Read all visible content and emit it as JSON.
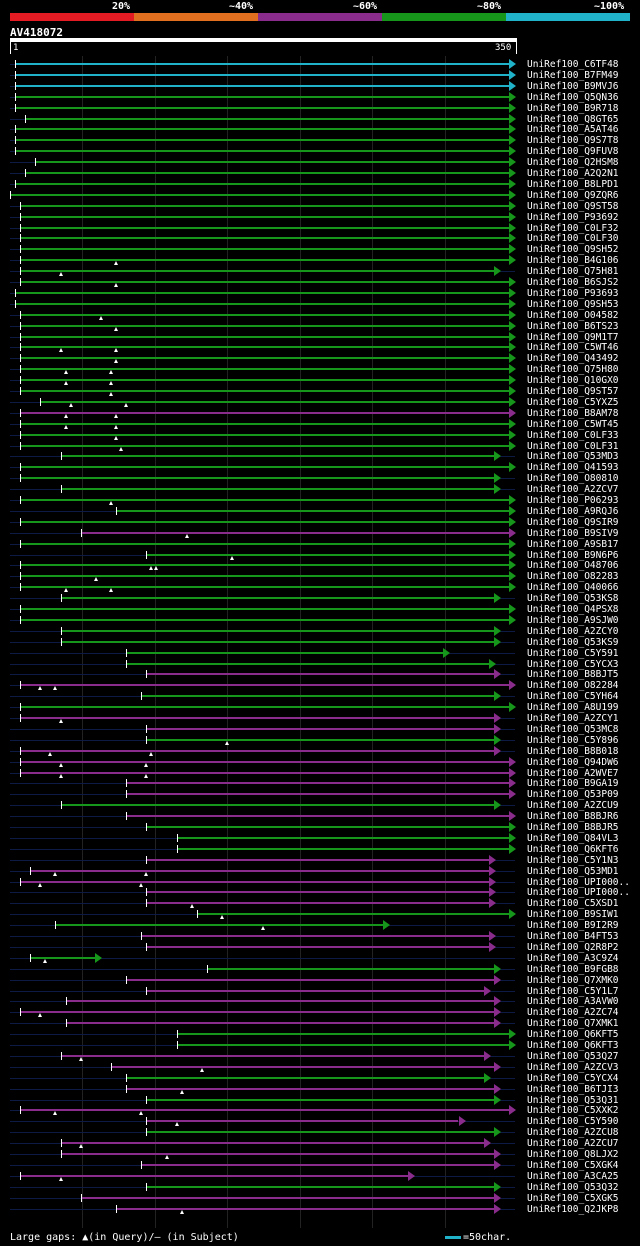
{
  "legend": {
    "labels": [
      "20%",
      "~40%",
      "~60%",
      "~80%",
      "~100%"
    ],
    "colors": [
      "#e51b24",
      "#e07020",
      "#8a2c8c",
      "#16961a",
      "#20b2c8"
    ]
  },
  "query": {
    "id": "AV418072",
    "start": "1",
    "end": "350"
  },
  "footer": {
    "text": "Large gaps: ▲(in Query)/– (in Subject)",
    "scale_text": "=50char."
  },
  "hits": [
    {
      "name": "UniRef100_C6TF48",
      "color": "#20b2c8",
      "s": 0.01,
      "e": 1.0,
      "gap": []
    },
    {
      "name": "UniRef100_B7FM49",
      "color": "#20b2c8",
      "s": 0.01,
      "e": 1.0,
      "gap": []
    },
    {
      "name": "UniRef100_B9MVJ6",
      "color": "#20b2c8",
      "s": 0.01,
      "e": 1.0,
      "gap": []
    },
    {
      "name": "UniRef100_Q5QN36",
      "color": "#16961a",
      "s": 0.01,
      "e": 1.0,
      "gap": []
    },
    {
      "name": "UniRef100_B9R718",
      "color": "#16961a",
      "s": 0.01,
      "e": 1.0,
      "gap": []
    },
    {
      "name": "UniRef100_Q8GT65",
      "color": "#16961a",
      "s": 0.03,
      "e": 1.0,
      "gap": []
    },
    {
      "name": "UniRef100_A5AT46",
      "color": "#16961a",
      "s": 0.01,
      "e": 1.0,
      "gap": []
    },
    {
      "name": "UniRef100_Q9S7T8",
      "color": "#16961a",
      "s": 0.01,
      "e": 1.0,
      "gap": []
    },
    {
      "name": "UniRef100_Q9FUV8",
      "color": "#16961a",
      "s": 0.01,
      "e": 1.0,
      "gap": []
    },
    {
      "name": "UniRef100_Q2HSM8",
      "color": "#16961a",
      "s": 0.05,
      "e": 1.0,
      "gap": []
    },
    {
      "name": "UniRef100_A2Q2N1",
      "color": "#16961a",
      "s": 0.03,
      "e": 1.0,
      "gap": []
    },
    {
      "name": "UniRef100_B8LPD1",
      "color": "#16961a",
      "s": 0.01,
      "e": 1.0,
      "gap": []
    },
    {
      "name": "UniRef100_Q9ZQR6",
      "color": "#16961a",
      "s": 0.0,
      "e": 1.0,
      "gap": []
    },
    {
      "name": "UniRef100_Q9ST58",
      "color": "#16961a",
      "s": 0.02,
      "e": 1.0,
      "gap": []
    },
    {
      "name": "UniRef100_P93692",
      "color": "#16961a",
      "s": 0.02,
      "e": 1.0,
      "gap": []
    },
    {
      "name": "UniRef100_C0LF32",
      "color": "#16961a",
      "s": 0.02,
      "e": 1.0,
      "gap": []
    },
    {
      "name": "UniRef100_C0LF30",
      "color": "#16961a",
      "s": 0.02,
      "e": 1.0,
      "gap": []
    },
    {
      "name": "UniRef100_Q9SH52",
      "color": "#16961a",
      "s": 0.02,
      "e": 1.0,
      "gap": []
    },
    {
      "name": "UniRef100_B4G106",
      "color": "#16961a",
      "s": 0.02,
      "e": 1.0,
      "gap": [
        0.21
      ]
    },
    {
      "name": "UniRef100_Q75H81",
      "color": "#16961a",
      "s": 0.02,
      "e": 0.97,
      "gap": [
        0.1
      ]
    },
    {
      "name": "UniRef100_B6SJS2",
      "color": "#16961a",
      "s": 0.02,
      "e": 1.0,
      "gap": [
        0.21
      ]
    },
    {
      "name": "UniRef100_P93693",
      "color": "#16961a",
      "s": 0.01,
      "e": 1.0,
      "gap": []
    },
    {
      "name": "UniRef100_Q9SH53",
      "color": "#16961a",
      "s": 0.01,
      "e": 1.0,
      "gap": []
    },
    {
      "name": "UniRef100_O04582",
      "color": "#16961a",
      "s": 0.02,
      "e": 1.0,
      "gap": [
        0.18
      ]
    },
    {
      "name": "UniRef100_B6TS23",
      "color": "#16961a",
      "s": 0.02,
      "e": 1.0,
      "gap": [
        0.21
      ]
    },
    {
      "name": "UniRef100_Q9M1T7",
      "color": "#16961a",
      "s": 0.02,
      "e": 1.0,
      "gap": []
    },
    {
      "name": "UniRef100_C5WT46",
      "color": "#16961a",
      "s": 0.02,
      "e": 1.0,
      "gap": [
        0.1,
        0.21
      ]
    },
    {
      "name": "UniRef100_Q43492",
      "color": "#16961a",
      "s": 0.02,
      "e": 1.0,
      "gap": [
        0.21
      ]
    },
    {
      "name": "UniRef100_Q75H80",
      "color": "#16961a",
      "s": 0.02,
      "e": 1.0,
      "gap": [
        0.11,
        0.2
      ]
    },
    {
      "name": "UniRef100_Q10GX0",
      "color": "#16961a",
      "s": 0.02,
      "e": 1.0,
      "gap": [
        0.11,
        0.2
      ]
    },
    {
      "name": "UniRef100_Q9ST57",
      "color": "#16961a",
      "s": 0.02,
      "e": 1.0,
      "gap": [
        0.2
      ]
    },
    {
      "name": "UniRef100_C5YXZ5",
      "color": "#16961a",
      "s": 0.06,
      "e": 1.0,
      "gap": [
        0.12,
        0.23
      ]
    },
    {
      "name": "UniRef100_B8AM78",
      "color": "#8a2c8c",
      "s": 0.02,
      "e": 1.0,
      "gap": [
        0.11,
        0.21
      ]
    },
    {
      "name": "UniRef100_C5WT45",
      "color": "#16961a",
      "s": 0.02,
      "e": 1.0,
      "gap": [
        0.11,
        0.21
      ]
    },
    {
      "name": "UniRef100_C0LF33",
      "color": "#16961a",
      "s": 0.02,
      "e": 1.0,
      "gap": [
        0.21
      ]
    },
    {
      "name": "UniRef100_C0LF31",
      "color": "#16961a",
      "s": 0.02,
      "e": 1.0,
      "gap": [
        0.22
      ]
    },
    {
      "name": "UniRef100_Q53MD3",
      "color": "#16961a",
      "s": 0.1,
      "e": 0.97,
      "gap": []
    },
    {
      "name": "UniRef100_Q41593",
      "color": "#16961a",
      "s": 0.02,
      "e": 1.0,
      "gap": []
    },
    {
      "name": "UniRef100_O80810",
      "color": "#16961a",
      "s": 0.02,
      "e": 0.97,
      "gap": []
    },
    {
      "name": "UniRef100_A2ZCV7",
      "color": "#16961a",
      "s": 0.1,
      "e": 0.97,
      "gap": []
    },
    {
      "name": "UniRef100_P06293",
      "color": "#16961a",
      "s": 0.02,
      "e": 1.0,
      "gap": [
        0.2
      ]
    },
    {
      "name": "UniRef100_A9RQJ6",
      "color": "#16961a",
      "s": 0.21,
      "e": 1.0,
      "gap": []
    },
    {
      "name": "UniRef100_Q9SIR9",
      "color": "#16961a",
      "s": 0.02,
      "e": 1.0,
      "gap": []
    },
    {
      "name": "UniRef100_B9SIV9",
      "color": "#8a2c8c",
      "s": 0.14,
      "e": 1.0,
      "gap": [
        0.35
      ]
    },
    {
      "name": "UniRef100_A9SB17",
      "color": "#16961a",
      "s": 0.02,
      "e": 1.0,
      "gap": []
    },
    {
      "name": "UniRef100_B9N6P6",
      "color": "#16961a",
      "s": 0.27,
      "e": 1.0,
      "gap": [
        0.44
      ]
    },
    {
      "name": "UniRef100_O48706",
      "color": "#16961a",
      "s": 0.02,
      "e": 1.0,
      "gap": [
        0.28,
        0.29
      ]
    },
    {
      "name": "UniRef100_O82283",
      "color": "#16961a",
      "s": 0.02,
      "e": 1.0,
      "gap": [
        0.17
      ]
    },
    {
      "name": "UniRef100_Q40066",
      "color": "#16961a",
      "s": 0.02,
      "e": 1.0,
      "gap": [
        0.11,
        0.2
      ]
    },
    {
      "name": "UniRef100_Q53KS8",
      "color": "#16961a",
      "s": 0.1,
      "e": 0.97,
      "gap": []
    },
    {
      "name": "UniRef100_Q4PSX8",
      "color": "#16961a",
      "s": 0.02,
      "e": 1.0,
      "gap": []
    },
    {
      "name": "UniRef100_A9SJW0",
      "color": "#16961a",
      "s": 0.02,
      "e": 1.0,
      "gap": []
    },
    {
      "name": "UniRef100_A2ZCY0",
      "color": "#16961a",
      "s": 0.1,
      "e": 0.97,
      "gap": []
    },
    {
      "name": "UniRef100_Q53KS9",
      "color": "#16961a",
      "s": 0.1,
      "e": 0.97,
      "gap": []
    },
    {
      "name": "UniRef100_C5Y591",
      "color": "#16961a",
      "s": 0.23,
      "e": 0.87,
      "gap": []
    },
    {
      "name": "UniRef100_C5YCX3",
      "color": "#16961a",
      "s": 0.23,
      "e": 0.96,
      "gap": []
    },
    {
      "name": "UniRef100_B8BJT5",
      "color": "#8a2c8c",
      "s": 0.27,
      "e": 0.97,
      "gap": []
    },
    {
      "name": "UniRef100_O82284",
      "color": "#8a2c8c",
      "s": 0.02,
      "e": 1.0,
      "gap": [
        0.06,
        0.09
      ]
    },
    {
      "name": "UniRef100_C5YH64",
      "color": "#16961a",
      "s": 0.26,
      "e": 0.97,
      "gap": []
    },
    {
      "name": "UniRef100_A8U199",
      "color": "#16961a",
      "s": 0.02,
      "e": 1.0,
      "gap": []
    },
    {
      "name": "UniRef100_A2ZCY1",
      "color": "#8a2c8c",
      "s": 0.02,
      "e": 0.97,
      "gap": [
        0.1
      ]
    },
    {
      "name": "UniRef100_Q53MC8",
      "color": "#8a2c8c",
      "s": 0.27,
      "e": 0.97,
      "gap": []
    },
    {
      "name": "UniRef100_C5Y896",
      "color": "#16961a",
      "s": 0.27,
      "e": 0.97,
      "gap": [
        0.43
      ]
    },
    {
      "name": "UniRef100_B8B018",
      "color": "#8a2c8c",
      "s": 0.02,
      "e": 0.97,
      "gap": [
        0.08,
        0.28
      ]
    },
    {
      "name": "UniRef100_Q94DW6",
      "color": "#8a2c8c",
      "s": 0.02,
      "e": 1.0,
      "gap": [
        0.1,
        0.27
      ]
    },
    {
      "name": "UniRef100_A2WVE7",
      "color": "#8a2c8c",
      "s": 0.02,
      "e": 1.0,
      "gap": [
        0.1,
        0.27
      ]
    },
    {
      "name": "UniRef100_B9GA19",
      "color": "#8a2c8c",
      "s": 0.23,
      "e": 1.0,
      "gap": []
    },
    {
      "name": "UniRef100_Q53P09",
      "color": "#8a2c8c",
      "s": 0.23,
      "e": 1.0,
      "gap": []
    },
    {
      "name": "UniRef100_A2ZCU9",
      "color": "#16961a",
      "s": 0.1,
      "e": 0.97,
      "gap": []
    },
    {
      "name": "UniRef100_B8BJR6",
      "color": "#8a2c8c",
      "s": 0.23,
      "e": 1.0,
      "gap": []
    },
    {
      "name": "UniRef100_B8BJR5",
      "color": "#16961a",
      "s": 0.27,
      "e": 1.0,
      "gap": []
    },
    {
      "name": "UniRef100_Q84VL3",
      "color": "#16961a",
      "s": 0.33,
      "e": 1.0,
      "gap": []
    },
    {
      "name": "UniRef100_Q6KFT6",
      "color": "#16961a",
      "s": 0.33,
      "e": 1.0,
      "gap": []
    },
    {
      "name": "UniRef100_C5Y1N3",
      "color": "#8a2c8c",
      "s": 0.27,
      "e": 0.96,
      "gap": []
    },
    {
      "name": "UniRef100_Q53MD1",
      "color": "#8a2c8c",
      "s": 0.04,
      "e": 0.96,
      "gap": [
        0.09,
        0.27
      ]
    },
    {
      "name": "UniRef100_UPI000..",
      "color": "#8a2c8c",
      "s": 0.02,
      "e": 0.96,
      "gap": [
        0.06,
        0.26
      ]
    },
    {
      "name": "UniRef100_UPI000..",
      "color": "#8a2c8c",
      "s": 0.27,
      "e": 0.96,
      "gap": []
    },
    {
      "name": "UniRef100_C5XSD1",
      "color": "#8a2c8c",
      "s": 0.27,
      "e": 0.96,
      "gap": [
        0.36
      ]
    },
    {
      "name": "UniRef100_B9SIW1",
      "color": "#16961a",
      "s": 0.37,
      "e": 1.0,
      "gap": [
        0.42
      ]
    },
    {
      "name": "UniRef100_B9I2R9",
      "color": "#16961a",
      "s": 0.09,
      "e": 0.75,
      "gap": [
        0.5
      ]
    },
    {
      "name": "UniRef100_B4FT53",
      "color": "#8a2c8c",
      "s": 0.26,
      "e": 0.96,
      "gap": []
    },
    {
      "name": "UniRef100_Q2R8P2",
      "color": "#8a2c8c",
      "s": 0.27,
      "e": 0.96,
      "gap": []
    },
    {
      "name": "UniRef100_A3C9Z4",
      "color": "#16961a",
      "s": 0.04,
      "e": 0.18,
      "gap": [
        0.07
      ]
    },
    {
      "name": "UniRef100_B9FGB8",
      "color": "#16961a",
      "s": 0.39,
      "e": 0.97,
      "gap": []
    },
    {
      "name": "UniRef100_Q7XMK0",
      "color": "#8a2c8c",
      "s": 0.23,
      "e": 0.97,
      "gap": []
    },
    {
      "name": "UniRef100_C5Y1L7",
      "color": "#8a2c8c",
      "s": 0.27,
      "e": 0.95,
      "gap": []
    },
    {
      "name": "UniRef100_A3AVW0",
      "color": "#8a2c8c",
      "s": 0.11,
      "e": 0.97,
      "gap": []
    },
    {
      "name": "UniRef100_A2ZC74",
      "color": "#8a2c8c",
      "s": 0.02,
      "e": 0.97,
      "gap": [
        0.06
      ]
    },
    {
      "name": "UniRef100_Q7XMK1",
      "color": "#8a2c8c",
      "s": 0.11,
      "e": 0.97,
      "gap": []
    },
    {
      "name": "UniRef100_Q6KFT5",
      "color": "#16961a",
      "s": 0.33,
      "e": 1.0,
      "gap": []
    },
    {
      "name": "UniRef100_Q6KFT3",
      "color": "#16961a",
      "s": 0.33,
      "e": 1.0,
      "gap": []
    },
    {
      "name": "UniRef100_Q53Q27",
      "color": "#8a2c8c",
      "s": 0.1,
      "e": 0.95,
      "gap": [
        0.14
      ]
    },
    {
      "name": "UniRef100_A2ZCV3",
      "color": "#8a2c8c",
      "s": 0.2,
      "e": 0.97,
      "gap": [
        0.38
      ]
    },
    {
      "name": "UniRef100_C5YCX4",
      "color": "#16961a",
      "s": 0.23,
      "e": 0.95,
      "gap": []
    },
    {
      "name": "UniRef100_B6TJI3",
      "color": "#8a2c8c",
      "s": 0.23,
      "e": 0.97,
      "gap": [
        0.34
      ]
    },
    {
      "name": "UniRef100_Q53Q31",
      "color": "#16961a",
      "s": 0.27,
      "e": 0.97,
      "gap": []
    },
    {
      "name": "UniRef100_C5XXK2",
      "color": "#8a2c8c",
      "s": 0.02,
      "e": 1.0,
      "gap": [
        0.09,
        0.26
      ]
    },
    {
      "name": "UniRef100_C5Y590",
      "color": "#8a2c8c",
      "s": 0.27,
      "e": 0.9,
      "gap": [
        0.33
      ]
    },
    {
      "name": "UniRef100_A2ZCU8",
      "color": "#16961a",
      "s": 0.27,
      "e": 0.97,
      "gap": []
    },
    {
      "name": "UniRef100_A2ZCU7",
      "color": "#8a2c8c",
      "s": 0.1,
      "e": 0.95,
      "gap": [
        0.14
      ]
    },
    {
      "name": "UniRef100_Q8LJX2",
      "color": "#8a2c8c",
      "s": 0.1,
      "e": 0.97,
      "gap": [
        0.31
      ]
    },
    {
      "name": "UniRef100_C5XGK4",
      "color": "#8a2c8c",
      "s": 0.26,
      "e": 0.97,
      "gap": []
    },
    {
      "name": "UniRef100_A3CA25",
      "color": "#8a2c8c",
      "s": 0.02,
      "e": 0.8,
      "gap": [
        0.1
      ]
    },
    {
      "name": "UniRef100_Q53Q32",
      "color": "#16961a",
      "s": 0.27,
      "e": 0.97,
      "gap": []
    },
    {
      "name": "UniRef100_C5XGK5",
      "color": "#8a2c8c",
      "s": 0.14,
      "e": 0.97,
      "gap": []
    },
    {
      "name": "UniRef100_Q2JKP8",
      "color": "#8a2c8c",
      "s": 0.21,
      "e": 0.97,
      "gap": [
        0.34
      ]
    }
  ]
}
